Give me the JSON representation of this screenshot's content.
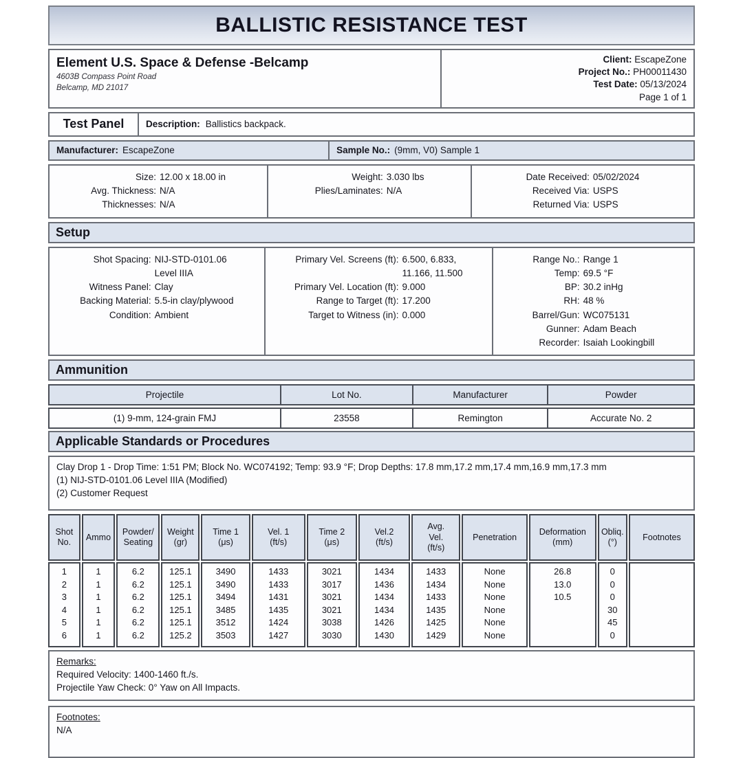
{
  "title": "BALLISTIC RESISTANCE TEST",
  "header": {
    "company_name": "Element U.S. Space & Defense -Belcamp",
    "address_line1": "4603B Compass Point Road",
    "address_line2": "Belcamp, MD 21017",
    "client_info": [
      {
        "label": "Client:",
        "value": "EscapeZone"
      },
      {
        "label": "Project No.:",
        "value": "PH00011430"
      },
      {
        "label": "Test Date:",
        "value": "05/13/2024"
      },
      {
        "label": "",
        "value": "Page 1 of 1"
      }
    ]
  },
  "test_panel": {
    "section_label": "Test Panel",
    "description_label": "Description:",
    "description": "Ballistics backpack.",
    "manufacturer_label": "Manufacturer:",
    "manufacturer": "EscapeZone",
    "sample_label": "Sample No.:",
    "sample": "(9mm, V0) Sample 1",
    "details_col1": [
      {
        "label": "Size:",
        "value": "12.00 x 18.00 in"
      },
      {
        "label": "Avg. Thickness:",
        "value": "N/A"
      },
      {
        "label": "Thicknesses:",
        "value": "N/A"
      }
    ],
    "details_col2": [
      {
        "label": "Weight:",
        "value": "3.030 lbs"
      },
      {
        "label": "Plies/Laminates:",
        "value": "N/A"
      }
    ],
    "details_col3": [
      {
        "label": "Date Received:",
        "value": "05/02/2024"
      },
      {
        "label": "Received Via:",
        "value": "USPS"
      },
      {
        "label": "Returned Via:",
        "value": "USPS"
      }
    ]
  },
  "setup": {
    "section_label": "Setup",
    "col1": [
      {
        "label": "Shot Spacing:",
        "value": "NIJ-STD-0101.06\nLevel IIIA"
      },
      {
        "label": "Witness Panel:",
        "value": "Clay"
      },
      {
        "label": "Backing Material:",
        "value": "5.5-in clay/plywood"
      },
      {
        "label": "Condition:",
        "value": "Ambient"
      }
    ],
    "col2": [
      {
        "label": "Primary Vel. Screens (ft):",
        "value": "6.500, 6.833,\n11.166, 11.500"
      },
      {
        "label": "Primary Vel. Location (ft):",
        "value": "9.000"
      },
      {
        "label": "Range to Target (ft):",
        "value": "17.200"
      },
      {
        "label": "Target to Witness (in):",
        "value": "0.000"
      }
    ],
    "col3": [
      {
        "label": "Range No.:",
        "value": "Range 1"
      },
      {
        "label": "Temp:",
        "value": "69.5 °F"
      },
      {
        "label": "BP:",
        "value": "30.2 inHg"
      },
      {
        "label": "RH:",
        "value": "48 %"
      },
      {
        "label": "Barrel/Gun:",
        "value": "WC075131"
      },
      {
        "label": "Gunner:",
        "value": "Adam Beach"
      },
      {
        "label": "Recorder:",
        "value": "Isaiah Lookingbill"
      }
    ]
  },
  "ammunition": {
    "section_label": "Ammunition",
    "headers": [
      "Projectile",
      "Lot No.",
      "Manufacturer",
      "Powder"
    ],
    "row": [
      "(1) 9-mm, 124-grain FMJ",
      "23558",
      "Remington",
      "Accurate No. 2"
    ]
  },
  "standards": {
    "section_label": "Applicable Standards or Procedures",
    "lines": [
      "Clay Drop 1 - Drop Time: 1:51 PM; Block No. WC074192; Temp: 93.9 °F; Drop Depths: 17.8 mm,17.2 mm,17.4 mm,16.9 mm,17.3 mm",
      "(1) NIJ-STD-0101.06 Level IIIA (Modified)",
      "(2) Customer Request"
    ]
  },
  "shot_table": {
    "headers": [
      "Shot\nNo.",
      "Ammo",
      "Powder/\nSeating",
      "Weight\n(gr)",
      "Time 1\n(μs)",
      "Vel. 1\n(ft/s)",
      "Time 2\n(μs)",
      "Vel.2\n(ft/s)",
      "Avg.\nVel.\n(ft/s)",
      "Penetration",
      "Deformation\n(mm)",
      "Obliq.\n(°)",
      "Footnotes"
    ],
    "rows": [
      [
        "1",
        "1",
        "6.2",
        "125.1",
        "3490",
        "1433",
        "3021",
        "1434",
        "1433",
        "None",
        "26.8",
        "0",
        ""
      ],
      [
        "2",
        "1",
        "6.2",
        "125.1",
        "3490",
        "1433",
        "3017",
        "1436",
        "1434",
        "None",
        "13.0",
        "0",
        ""
      ],
      [
        "3",
        "1",
        "6.2",
        "125.1",
        "3494",
        "1431",
        "3021",
        "1434",
        "1433",
        "None",
        "10.5",
        "0",
        ""
      ],
      [
        "4",
        "1",
        "6.2",
        "125.1",
        "3485",
        "1435",
        "3021",
        "1434",
        "1435",
        "None",
        "",
        "30",
        ""
      ],
      [
        "5",
        "1",
        "6.2",
        "125.1",
        "3512",
        "1424",
        "3038",
        "1426",
        "1425",
        "None",
        "",
        "45",
        ""
      ],
      [
        "6",
        "1",
        "6.2",
        "125.2",
        "3503",
        "1427",
        "3030",
        "1430",
        "1429",
        "None",
        "",
        "0",
        ""
      ]
    ]
  },
  "remarks": {
    "heading": "Remarks:",
    "lines": [
      "Required Velocity: 1400-1460 ft./s.",
      "Projectile Yaw Check: 0° Yaw on All Impacts."
    ]
  },
  "footnotes": {
    "heading": "Footnotes:",
    "lines": [
      "N/A"
    ]
  },
  "colors": {
    "section_bg": "#dce3ee",
    "band_top": "#b9c3d6",
    "band_bottom": "#edf0f6",
    "box_border": "#6a6e76",
    "table_border": "#41454d",
    "text": "#15151d"
  }
}
